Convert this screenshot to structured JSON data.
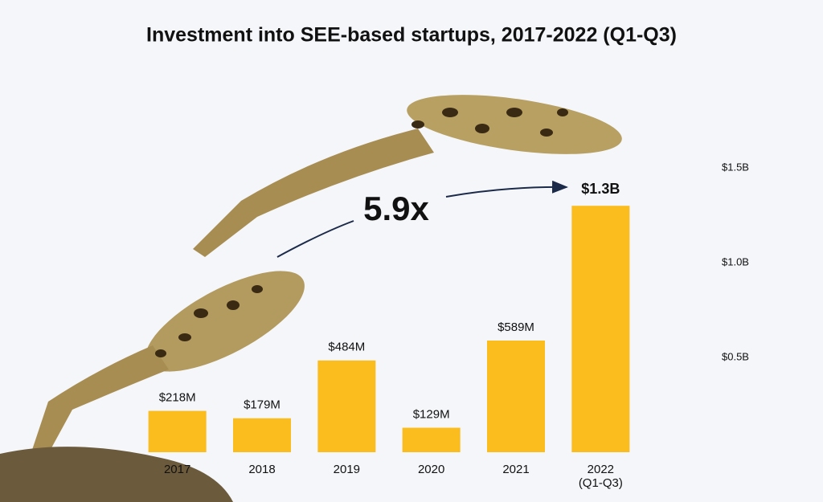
{
  "chart_data": {
    "type": "bar",
    "title": "Investment into SEE-based startups, 2017-2022 (Q1-Q3)",
    "categories": [
      "2017",
      "2018",
      "2019",
      "2020",
      "2021",
      "2022 (Q1-Q3)"
    ],
    "values": [
      0.218,
      0.179,
      0.484,
      0.129,
      0.589,
      1.3
    ],
    "value_labels": [
      "$218M",
      "$179M",
      "$484M",
      "$129M",
      "$589M",
      "$1.3B"
    ],
    "color": "#fbbd1e",
    "ylim": [
      0,
      1.5
    ],
    "yticks": [
      {
        "value": 0.5,
        "label": "$0.5B"
      },
      {
        "value": 1.0,
        "label": "$1.0B"
      },
      {
        "value": 1.5,
        "label": "$1.5B"
      }
    ],
    "annotation": "5.9x"
  }
}
